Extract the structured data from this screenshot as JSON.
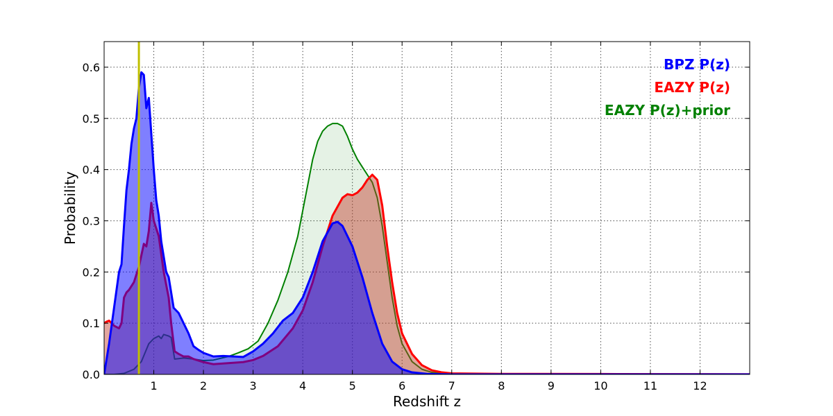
{
  "chart_data": {
    "type": "area",
    "title": "",
    "xlabel": "Redshift z",
    "ylabel": "Probability",
    "xlim": [
      0,
      13
    ],
    "ylim": [
      0,
      0.65
    ],
    "x_ticks": [
      1,
      2,
      3,
      4,
      5,
      6,
      7,
      8,
      9,
      10,
      11,
      12
    ],
    "y_ticks": [
      0.0,
      0.1,
      0.2,
      0.3,
      0.4,
      0.5,
      0.6
    ],
    "y_tick_labels": [
      "0.0",
      "0.1",
      "0.2",
      "0.3",
      "0.4",
      "0.5",
      "0.6"
    ],
    "grid": true,
    "legend_position": "top-right",
    "reference_line": {
      "x": 0.7,
      "color": "#bfbf00"
    },
    "series": [
      {
        "name": "EAZY P(z)+prior",
        "color": "#008000",
        "fill": "#008000",
        "fill_opacity": 0.1,
        "stroke_width": 2,
        "points": [
          [
            0,
            0
          ],
          [
            0.2,
            0
          ],
          [
            0.4,
            0.002
          ],
          [
            0.6,
            0.01
          ],
          [
            0.75,
            0.025
          ],
          [
            0.9,
            0.06
          ],
          [
            1.0,
            0.07
          ],
          [
            1.1,
            0.075
          ],
          [
            1.15,
            0.07
          ],
          [
            1.2,
            0.078
          ],
          [
            1.3,
            0.075
          ],
          [
            1.35,
            0.072
          ],
          [
            1.42,
            0.03
          ],
          [
            1.6,
            0.032
          ],
          [
            1.8,
            0.03
          ],
          [
            2.0,
            0.027
          ],
          [
            2.2,
            0.028
          ],
          [
            2.5,
            0.035
          ],
          [
            2.7,
            0.042
          ],
          [
            2.9,
            0.05
          ],
          [
            3.1,
            0.065
          ],
          [
            3.3,
            0.1
          ],
          [
            3.5,
            0.145
          ],
          [
            3.7,
            0.2
          ],
          [
            3.9,
            0.27
          ],
          [
            4.0,
            0.32
          ],
          [
            4.1,
            0.37
          ],
          [
            4.2,
            0.42
          ],
          [
            4.3,
            0.455
          ],
          [
            4.4,
            0.475
          ],
          [
            4.5,
            0.485
          ],
          [
            4.6,
            0.49
          ],
          [
            4.7,
            0.49
          ],
          [
            4.8,
            0.485
          ],
          [
            4.9,
            0.465
          ],
          [
            5.0,
            0.44
          ],
          [
            5.1,
            0.42
          ],
          [
            5.2,
            0.405
          ],
          [
            5.3,
            0.39
          ],
          [
            5.4,
            0.375
          ],
          [
            5.5,
            0.345
          ],
          [
            5.6,
            0.29
          ],
          [
            5.7,
            0.22
          ],
          [
            5.8,
            0.15
          ],
          [
            5.9,
            0.095
          ],
          [
            6.0,
            0.06
          ],
          [
            6.2,
            0.025
          ],
          [
            6.4,
            0.01
          ],
          [
            6.6,
            0.004
          ],
          [
            7.0,
            0.001
          ],
          [
            8,
            0
          ],
          [
            13,
            0
          ]
        ]
      },
      {
        "name": "EAZY P(z)",
        "color": "#ff0000",
        "fill": "#c0392b",
        "fill_opacity": 0.45,
        "stroke_width": 3,
        "points": [
          [
            0,
            0.1
          ],
          [
            0.05,
            0.103
          ],
          [
            0.1,
            0.105
          ],
          [
            0.2,
            0.095
          ],
          [
            0.3,
            0.09
          ],
          [
            0.35,
            0.1
          ],
          [
            0.4,
            0.15
          ],
          [
            0.45,
            0.16
          ],
          [
            0.5,
            0.165
          ],
          [
            0.6,
            0.18
          ],
          [
            0.7,
            0.21
          ],
          [
            0.8,
            0.255
          ],
          [
            0.85,
            0.25
          ],
          [
            0.9,
            0.28
          ],
          [
            0.95,
            0.335
          ],
          [
            1.0,
            0.3
          ],
          [
            1.1,
            0.27
          ],
          [
            1.2,
            0.2
          ],
          [
            1.3,
            0.15
          ],
          [
            1.35,
            0.1
          ],
          [
            1.42,
            0.045
          ],
          [
            1.5,
            0.04
          ],
          [
            1.6,
            0.035
          ],
          [
            1.7,
            0.035
          ],
          [
            1.8,
            0.03
          ],
          [
            2.0,
            0.024
          ],
          [
            2.2,
            0.02
          ],
          [
            2.5,
            0.022
          ],
          [
            2.8,
            0.024
          ],
          [
            3.0,
            0.028
          ],
          [
            3.2,
            0.036
          ],
          [
            3.5,
            0.055
          ],
          [
            3.8,
            0.09
          ],
          [
            4.0,
            0.125
          ],
          [
            4.2,
            0.18
          ],
          [
            4.4,
            0.25
          ],
          [
            4.6,
            0.31
          ],
          [
            4.8,
            0.345
          ],
          [
            4.9,
            0.352
          ],
          [
            5.0,
            0.35
          ],
          [
            5.1,
            0.355
          ],
          [
            5.2,
            0.365
          ],
          [
            5.3,
            0.38
          ],
          [
            5.4,
            0.39
          ],
          [
            5.5,
            0.38
          ],
          [
            5.6,
            0.33
          ],
          [
            5.7,
            0.25
          ],
          [
            5.8,
            0.18
          ],
          [
            5.9,
            0.12
          ],
          [
            6.0,
            0.08
          ],
          [
            6.2,
            0.04
          ],
          [
            6.4,
            0.018
          ],
          [
            6.6,
            0.008
          ],
          [
            6.8,
            0.004
          ],
          [
            7.0,
            0.002
          ],
          [
            8,
            0.001
          ],
          [
            10,
            0.0008
          ],
          [
            12,
            0.0005
          ],
          [
            13,
            0.0003
          ]
        ]
      },
      {
        "name": "BPZ P(z)",
        "color": "#0000ff",
        "fill": "#0000ff",
        "fill_opacity": 0.5,
        "stroke_width": 3,
        "points": [
          [
            0,
            0
          ],
          [
            0.1,
            0.06
          ],
          [
            0.2,
            0.13
          ],
          [
            0.3,
            0.2
          ],
          [
            0.35,
            0.215
          ],
          [
            0.4,
            0.29
          ],
          [
            0.45,
            0.36
          ],
          [
            0.5,
            0.4
          ],
          [
            0.55,
            0.45
          ],
          [
            0.6,
            0.48
          ],
          [
            0.65,
            0.5
          ],
          [
            0.7,
            0.56
          ],
          [
            0.75,
            0.59
          ],
          [
            0.8,
            0.585
          ],
          [
            0.85,
            0.52
          ],
          [
            0.9,
            0.54
          ],
          [
            0.95,
            0.47
          ],
          [
            1.0,
            0.4
          ],
          [
            1.05,
            0.34
          ],
          [
            1.1,
            0.31
          ],
          [
            1.15,
            0.26
          ],
          [
            1.2,
            0.23
          ],
          [
            1.25,
            0.2
          ],
          [
            1.3,
            0.19
          ],
          [
            1.35,
            0.16
          ],
          [
            1.4,
            0.13
          ],
          [
            1.5,
            0.12
          ],
          [
            1.6,
            0.1
          ],
          [
            1.7,
            0.08
          ],
          [
            1.8,
            0.055
          ],
          [
            1.9,
            0.048
          ],
          [
            2.0,
            0.042
          ],
          [
            2.2,
            0.035
          ],
          [
            2.4,
            0.036
          ],
          [
            2.6,
            0.035
          ],
          [
            2.8,
            0.034
          ],
          [
            3.0,
            0.045
          ],
          [
            3.2,
            0.06
          ],
          [
            3.4,
            0.08
          ],
          [
            3.6,
            0.105
          ],
          [
            3.8,
            0.12
          ],
          [
            4.0,
            0.15
          ],
          [
            4.2,
            0.2
          ],
          [
            4.4,
            0.26
          ],
          [
            4.6,
            0.295
          ],
          [
            4.7,
            0.298
          ],
          [
            4.8,
            0.29
          ],
          [
            5.0,
            0.25
          ],
          [
            5.2,
            0.19
          ],
          [
            5.4,
            0.12
          ],
          [
            5.6,
            0.06
          ],
          [
            5.8,
            0.025
          ],
          [
            6.0,
            0.01
          ],
          [
            6.2,
            0.004
          ],
          [
            6.5,
            0.001
          ],
          [
            7,
            0
          ],
          [
            13,
            0
          ]
        ]
      }
    ],
    "legend": [
      {
        "label": "BPZ P(z)",
        "color": "#0000ff"
      },
      {
        "label": "EAZY P(z)",
        "color": "#ff0000"
      },
      {
        "label": "EAZY P(z)+prior",
        "color": "#008000"
      }
    ]
  }
}
